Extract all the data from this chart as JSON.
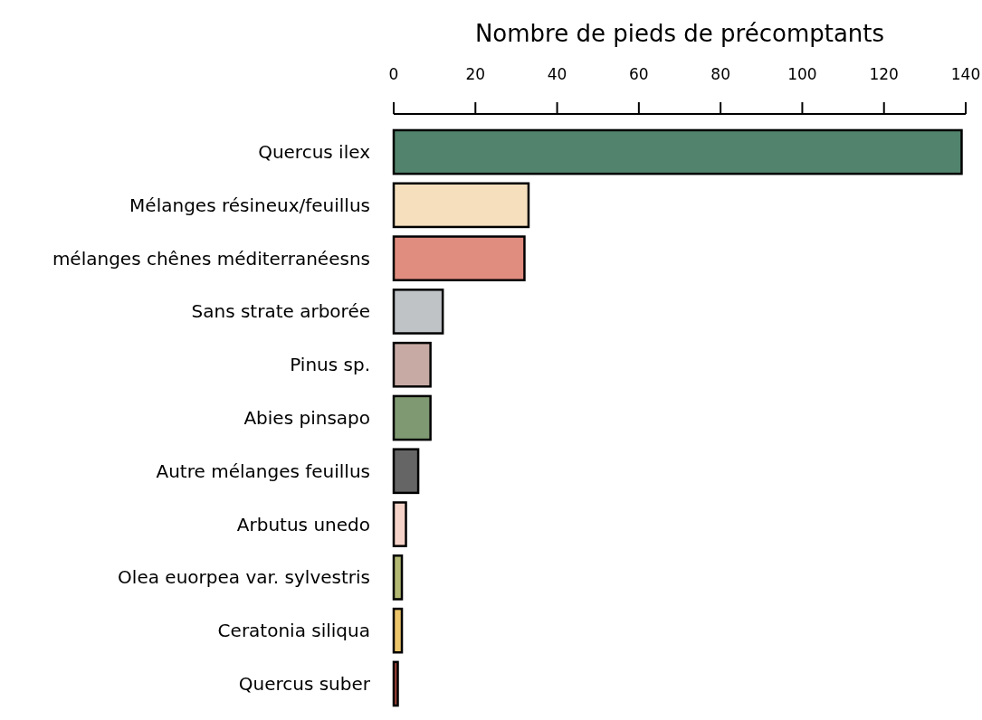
{
  "chart_data": {
    "type": "bar",
    "orientation": "horizontal",
    "title": "Nombre de pieds de précomptants",
    "categories": [
      "Quercus ilex",
      "Mélanges résineux/feuillus",
      "mélanges chênes méditerranéesns",
      "Sans strate arborée",
      "Pinus sp.",
      "Abies pinsapo",
      "Autre mélanges feuillus",
      "Arbutus unedo",
      "Olea euorpea var. sylvestris",
      "Ceratonia siliqua",
      "Quercus suber"
    ],
    "values": [
      139,
      33,
      32,
      12,
      9,
      9,
      6,
      3,
      2,
      2,
      1
    ],
    "colors": [
      "#52836c",
      "#f5dfbd",
      "#e08c7e",
      "#bfc3c6",
      "#c8aaa4",
      "#7f9a72",
      "#656565",
      "#f5d3c8",
      "#b3b873",
      "#ecc46a",
      "#a0453c"
    ],
    "xlim": [
      0,
      140
    ],
    "xticks": [
      0,
      20,
      40,
      60,
      80,
      100,
      120,
      140
    ],
    "grid": false
  }
}
